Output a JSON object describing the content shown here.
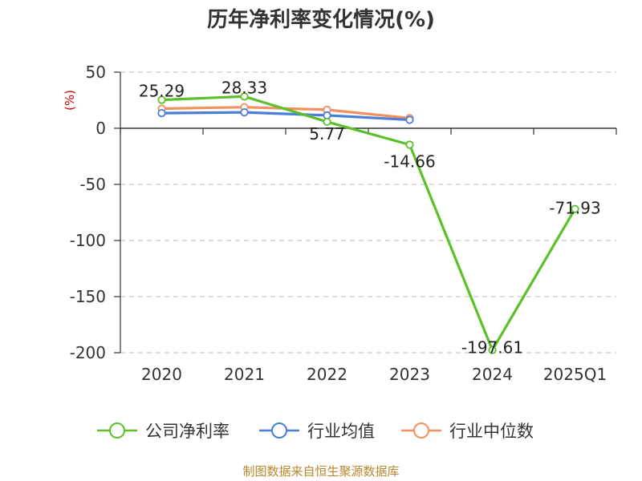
{
  "chart_data": {
    "type": "line",
    "title": "历年净利率变化情况(%)",
    "ylabel": "(%)",
    "xlabel": "",
    "categories": [
      "2020",
      "2021",
      "2022",
      "2023",
      "2024",
      "2025Q1"
    ],
    "ylim": [
      -200,
      50
    ],
    "yticks": [
      50,
      0,
      -50,
      -100,
      -150,
      -200
    ],
    "grid": true,
    "legend_position": "bottom",
    "series": [
      {
        "name": "公司净利率",
        "color": "#5cc02a",
        "values": [
          25.29,
          28.33,
          5.77,
          -14.66,
          -197.61,
          -71.93
        ],
        "labels": [
          "25.29",
          "28.33",
          "5.77",
          "-14.66",
          "-197.61",
          "-71.93"
        ]
      },
      {
        "name": "行业均值",
        "color": "#4a7fd8",
        "values": [
          13.5,
          14.2,
          11.5,
          7.5,
          null,
          null
        ]
      },
      {
        "name": "行业中位数",
        "color": "#f29060",
        "values": [
          17.5,
          18.8,
          16.5,
          9.0,
          null,
          null
        ]
      }
    ]
  },
  "source": "制图数据来自恒生聚源数据库"
}
